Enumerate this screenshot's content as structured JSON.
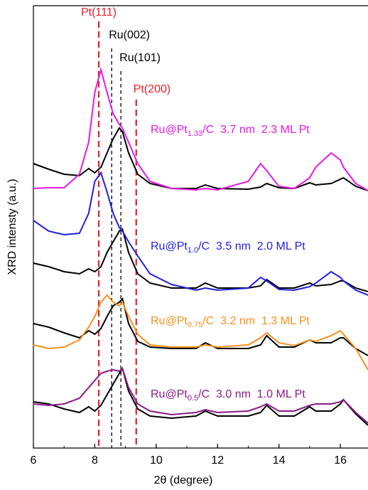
{
  "chart_data": {
    "type": "line",
    "xlabel": "2θ (degree)",
    "ylabel": "XRD intensty (a.u.)",
    "xlim": [
      6,
      16.9
    ],
    "xticks": [
      6,
      8,
      10,
      12,
      14,
      16
    ],
    "ylim": [
      0,
      622
    ],
    "x": [
      6.0,
      6.5,
      7.0,
      7.5,
      7.8,
      8.0,
      8.2,
      8.4,
      8.6,
      8.8,
      8.9,
      9.1,
      9.4,
      9.8,
      10.5,
      11.3,
      11.6,
      12.0,
      13.0,
      13.4,
      13.6,
      14.0,
      14.5,
      15.0,
      15.2,
      15.7,
      16.0,
      16.1,
      16.5,
      16.9
    ],
    "series": [
      {
        "color": "#000000",
        "values": [
          400,
          392,
          385,
          383,
          393,
          387,
          395,
          415,
          435,
          450,
          445,
          415,
          385,
          372,
          365,
          365,
          370,
          365,
          364,
          367,
          372,
          366,
          365,
          373,
          370,
          372,
          378,
          380,
          368,
          362
        ]
      },
      {
        "name": {
          "prefix": "Ru@Pt",
          "sub": "1.33",
          "rest": "/C  3.7 nm  2.3 ML Pt"
        },
        "color": "#e619e6",
        "values": [
          365,
          366,
          366,
          385,
          430,
          500,
          532,
          500,
          470,
          455,
          450,
          430,
          400,
          375,
          365,
          363,
          365,
          363,
          375,
          400,
          390,
          368,
          365,
          380,
          395,
          415,
          405,
          395,
          372,
          362
        ]
      },
      {
        "color": "#000000",
        "values": [
          260,
          255,
          248,
          245,
          252,
          248,
          255,
          275,
          290,
          305,
          308,
          275,
          245,
          232,
          225,
          225,
          232,
          225,
          225,
          228,
          237,
          225,
          225,
          232,
          228,
          230,
          235,
          235,
          225,
          220
        ]
      },
      {
        "name": {
          "prefix": "Ru@Pt",
          "sub": "1.0",
          "rest": "/C  3.5 nm  2.0 ML Pt"
        },
        "color": "#1f1fe0",
        "values": [
          320,
          305,
          300,
          302,
          330,
          375,
          387,
          360,
          330,
          310,
          305,
          290,
          270,
          245,
          230,
          222,
          225,
          222,
          225,
          240,
          235,
          223,
          222,
          227,
          232,
          248,
          240,
          235,
          222,
          215
        ]
      },
      {
        "color": "#000000",
        "values": [
          175,
          170,
          162,
          155,
          165,
          160,
          168,
          185,
          200,
          205,
          210,
          175,
          150,
          142,
          140,
          140,
          148,
          140,
          140,
          145,
          158,
          142,
          142,
          152,
          148,
          148,
          155,
          155,
          140,
          130
        ]
      },
      {
        "name": {
          "prefix": "Ru@Pt",
          "sub": "0.75",
          "rest": "/C  3.2 nm  1.3 ML Pt"
        },
        "color": "#f7901e",
        "values": [
          145,
          140,
          142,
          152,
          170,
          185,
          205,
          215,
          205,
          200,
          205,
          185,
          160,
          145,
          142,
          142,
          145,
          142,
          145,
          155,
          162,
          148,
          144,
          152,
          150,
          158,
          165,
          160,
          140,
          110
        ]
      },
      {
        "color": "#000000",
        "values": [
          65,
          62,
          55,
          50,
          58,
          52,
          60,
          75,
          90,
          105,
          112,
          80,
          55,
          45,
          42,
          45,
          52,
          45,
          45,
          50,
          60,
          45,
          45,
          58,
          52,
          52,
          62,
          68,
          48,
          32
        ]
      },
      {
        "name": {
          "prefix": "Ru@Pt",
          "sub": "0.5",
          "rest": "/C  3.0 nm  1.0 ML Pt"
        },
        "color": "#8b1a8b",
        "values": [
          62,
          60,
          62,
          70,
          85,
          95,
          105,
          108,
          110,
          108,
          112,
          85,
          62,
          52,
          47,
          50,
          54,
          50,
          52,
          58,
          62,
          52,
          52,
          60,
          62,
          62,
          65,
          68,
          50,
          35
        ]
      }
    ],
    "annotations": [
      {
        "text": "Pt(111)",
        "x": 8.13,
        "color": "#e8202a"
      },
      {
        "text": "Ru(002)",
        "x": 8.55,
        "color": "#000000"
      },
      {
        "text": "Ru(101)",
        "x": 8.85,
        "color": "#000000"
      },
      {
        "text": "Pt(200)",
        "x": 9.35,
        "color": "#e8202a"
      }
    ]
  }
}
